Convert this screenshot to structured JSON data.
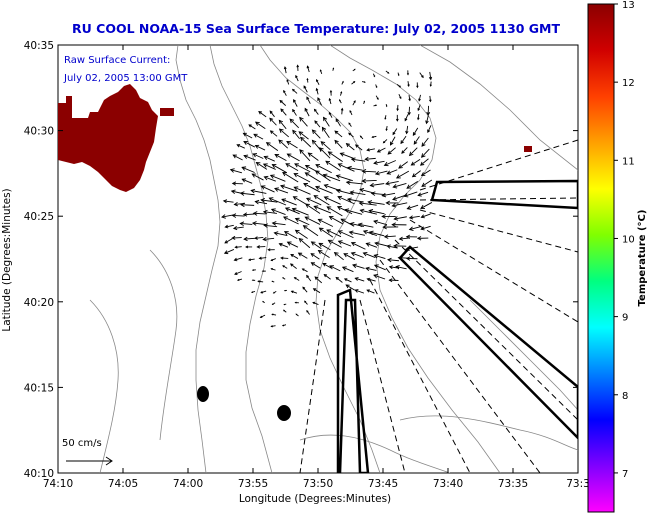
{
  "title": "RU COOL  NOAA-15  Sea Surface Temperature:  July 02, 2005 1130 GMT",
  "overlay": {
    "line1": "Raw Surface Current:",
    "line2": "July 02, 2005 13:00 GMT"
  },
  "scale_arrow_label": "50 cm/s",
  "x_axis": {
    "label": "Longitude (Degrees:Minutes)",
    "ticks": [
      "74:10",
      "74:05",
      "74:00",
      "73:55",
      "73:50",
      "73:45",
      "73:40",
      "73:35",
      "73:3"
    ]
  },
  "y_axis": {
    "label": "Latitude (Degrees:Minutes)",
    "ticks": [
      "40:35",
      "40:30",
      "40:25",
      "40:20",
      "40:15",
      "40:10"
    ]
  },
  "colorbar": {
    "label": "Temperature (°C)",
    "ticks": [
      "13",
      "12",
      "11",
      "10",
      "9",
      "8",
      "7"
    ],
    "min": 6.5,
    "max": 13,
    "colors": [
      "#ff00ff",
      "#8000ff",
      "#0000ff",
      "#0080ff",
      "#00ffff",
      "#00ff80",
      "#80ff00",
      "#ffff00",
      "#ffa000",
      "#ff4000",
      "#d00000",
      "#8b0000"
    ]
  },
  "colors": {
    "title": "#0000cc",
    "overlay": "#0000cc",
    "land": "#8b0000",
    "arrow": "#000000"
  }
}
